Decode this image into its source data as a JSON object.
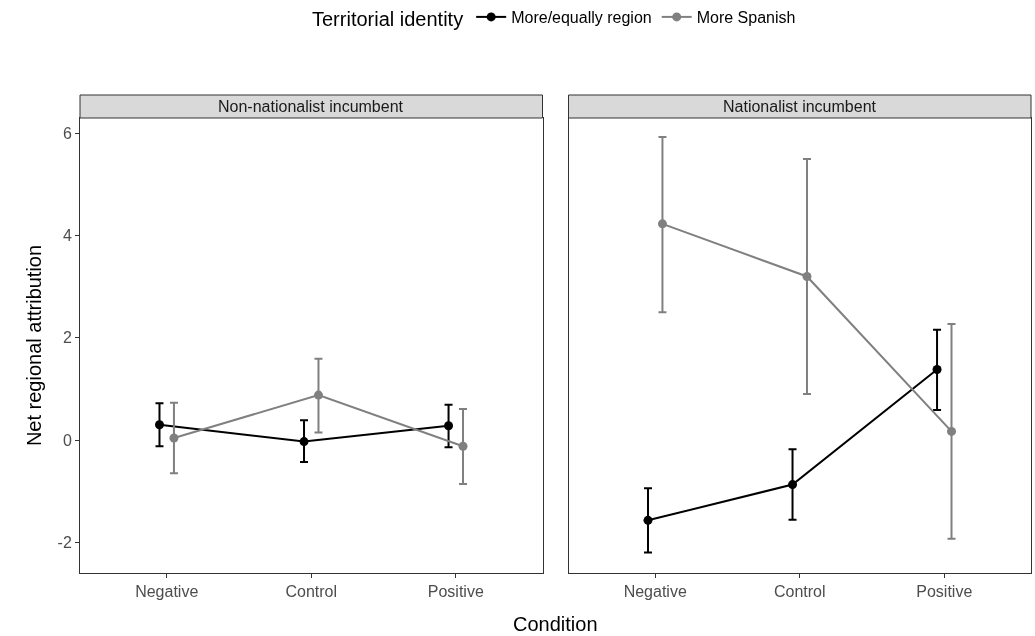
{
  "chart_data": [
    {
      "type": "line",
      "title": "Non-nationalist incumbent",
      "xlabel": "Condition",
      "ylabel": "Net regional attribution",
      "legend_title": "Territorial identity",
      "legend": "top",
      "marker": "circle",
      "categories": [
        "Negative",
        "Control",
        "Positive"
      ],
      "ylim": [
        -2.6,
        6.3
      ],
      "yticks": [
        -2,
        0,
        2,
        4,
        6
      ],
      "series": [
        {
          "name": "More/equally region",
          "color": "#000000",
          "values": [
            0.3,
            -0.03,
            0.28
          ],
          "errors": [
            [
              -0.12,
              0.72
            ],
            [
              -0.43,
              0.39
            ],
            [
              -0.14,
              0.69
            ]
          ]
        },
        {
          "name": "More Spanish",
          "color": "#808080",
          "values": [
            0.04,
            0.88,
            -0.12
          ],
          "errors": [
            [
              -0.65,
              0.73
            ],
            [
              0.15,
              1.59
            ],
            [
              -0.86,
              0.61
            ]
          ]
        }
      ]
    },
    {
      "type": "line",
      "title": "Nationalist incumbent",
      "marker": "circle",
      "tick_labels": "x",
      "categories": [
        "Negative",
        "Control",
        "Positive"
      ],
      "ylim": [
        -2.6,
        6.3
      ],
      "series": [
        {
          "color": "#000000",
          "values": [
            -1.57,
            -0.87,
            1.38
          ],
          "errors": [
            [
              -2.2,
              -0.94
            ],
            [
              -1.56,
              -0.18
            ],
            [
              0.59,
              2.16
            ]
          ]
        },
        {
          "color": "#808080",
          "values": [
            4.23,
            3.2,
            0.17
          ],
          "errors": [
            [
              2.5,
              5.93
            ],
            [
              0.9,
              5.5
            ],
            [
              -1.93,
              2.27
            ]
          ]
        }
      ]
    }
  ]
}
